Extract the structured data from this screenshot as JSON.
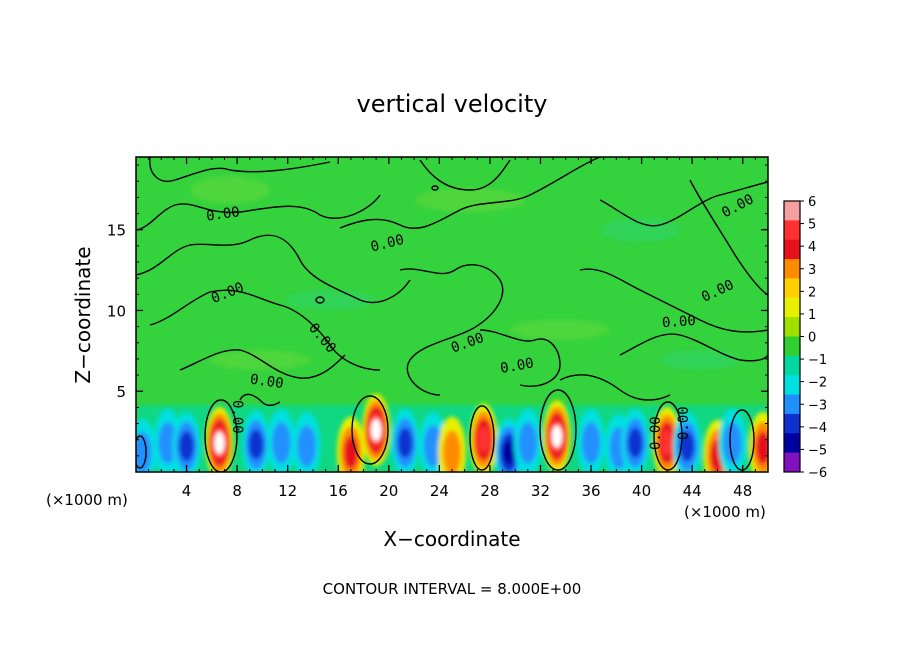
{
  "chart_data": {
    "type": "heatmap",
    "title": "vertical velocity",
    "xlabel": "X−coordinate",
    "ylabel": "Z−coordinate",
    "x_unit": "(×1000 m)",
    "z_unit": "(×1000 m)",
    "x_ticks": [
      4,
      8,
      12,
      16,
      20,
      24,
      28,
      32,
      36,
      40,
      44,
      48
    ],
    "z_ticks": [
      5,
      10,
      15
    ],
    "xlim": [
      0,
      50
    ],
    "zlim": [
      0,
      19.5
    ],
    "colorbar": {
      "ticks": [
        6,
        5,
        4,
        3,
        2,
        1,
        0,
        -1,
        -2,
        -3,
        -4,
        -5,
        -6
      ],
      "colors": [
        "#f4a0a0",
        "#ff3030",
        "#e8101a",
        "#ff8c00",
        "#ffd000",
        "#e8f000",
        "#a0e000",
        "#30d030",
        "#00d8a0",
        "#00e0e0",
        "#2090ff",
        "#1030d0",
        "#0000a0",
        "#8010c0"
      ]
    },
    "contour_interval_text": "CONTOUR INTERVAL = 8.000E+00",
    "contour_labels": [
      "0.00",
      "0.00",
      "0.00",
      "0.00",
      "0.00",
      "0.00",
      "0.00",
      "0.00",
      "0.00",
      "0.00",
      "0.00",
      "0.00",
      "0.00"
    ],
    "cells": [
      {
        "x": 0.5,
        "z": 1.2,
        "w": -1
      },
      {
        "x": 2.5,
        "z": 1.8,
        "w": -3
      },
      {
        "x": 4.0,
        "z": 1.6,
        "w": -4
      },
      {
        "x": 6.6,
        "z": 1.8,
        "w": 6
      },
      {
        "x": 9.5,
        "z": 1.7,
        "w": -4
      },
      {
        "x": 11.5,
        "z": 1.8,
        "w": -3
      },
      {
        "x": 13.5,
        "z": 1.6,
        "w": -2
      },
      {
        "x": 17.0,
        "z": 1.2,
        "w": 4
      },
      {
        "x": 19.0,
        "z": 2.6,
        "w": 6
      },
      {
        "x": 21.3,
        "z": 1.8,
        "w": -4
      },
      {
        "x": 23.5,
        "z": 1.6,
        "w": -3
      },
      {
        "x": 25.0,
        "z": 1.2,
        "w": 3
      },
      {
        "x": 27.5,
        "z": 2.0,
        "w": 5
      },
      {
        "x": 29.5,
        "z": 1.2,
        "w": -5
      },
      {
        "x": 31.0,
        "z": 1.8,
        "w": -3
      },
      {
        "x": 33.3,
        "z": 2.2,
        "w": 6
      },
      {
        "x": 36.0,
        "z": 1.8,
        "w": -3
      },
      {
        "x": 38.2,
        "z": 1.5,
        "w": -3
      },
      {
        "x": 39.5,
        "z": 1.8,
        "w": -4
      },
      {
        "x": 42.0,
        "z": 1.8,
        "w": 5
      },
      {
        "x": 43.6,
        "z": 1.6,
        "w": -4
      },
      {
        "x": 46.0,
        "z": 1.0,
        "w": 4
      },
      {
        "x": 47.2,
        "z": 1.8,
        "w": -3
      },
      {
        "x": 49.6,
        "z": 1.5,
        "w": 4
      }
    ]
  }
}
